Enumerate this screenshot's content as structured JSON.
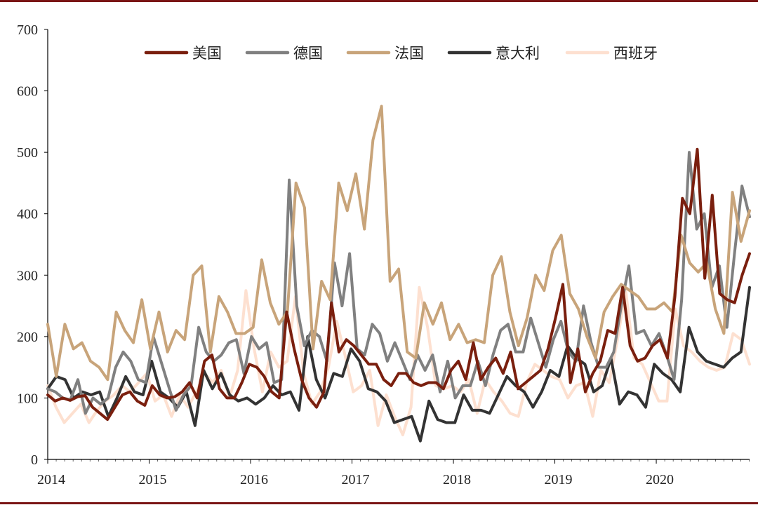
{
  "chart_data": {
    "type": "line",
    "title": "",
    "xlabel": "",
    "ylabel": "",
    "ylim": [
      0,
      700
    ],
    "y_ticks": [
      "0",
      "100",
      "200",
      "300",
      "400",
      "500",
      "600",
      "700"
    ],
    "x_ticks": [
      "2014",
      "2015",
      "2016",
      "2017",
      "2018",
      "2019",
      "2020"
    ],
    "x_start": 2014.0,
    "x_end": 2020.92,
    "grid": false,
    "legend_position": "top",
    "series": [
      {
        "name": "美国",
        "color": "#7a1f0e",
        "values": [
          105,
          95,
          100,
          96,
          102,
          104,
          85,
          75,
          65,
          85,
          105,
          110,
          95,
          88,
          120,
          105,
          100,
          102,
          110,
          125,
          100,
          160,
          170,
          115,
          100,
          100,
          125,
          155,
          150,
          135,
          110,
          100,
          240,
          180,
          130,
          100,
          85,
          110,
          255,
          175,
          195,
          185,
          170,
          155,
          155,
          130,
          120,
          140,
          140,
          125,
          120,
          125,
          125,
          115,
          145,
          160,
          130,
          190,
          130,
          150,
          165,
          140,
          175,
          115,
          125,
          135,
          145,
          180,
          230,
          285,
          125,
          180,
          110,
          140,
          160,
          210,
          205,
          280,
          185,
          160,
          165,
          185,
          195,
          165,
          265,
          425,
          400,
          505,
          295,
          430,
          270,
          260,
          255,
          300,
          335
        ]
      },
      {
        "name": "德国",
        "color": "#808080",
        "values": [
          115,
          110,
          100,
          97,
          130,
          75,
          100,
          90,
          100,
          150,
          175,
          160,
          130,
          125,
          200,
          160,
          120,
          80,
          105,
          120,
          215,
          175,
          160,
          170,
          190,
          195,
          140,
          200,
          180,
          190,
          125,
          130,
          455,
          250,
          185,
          210,
          200,
          160,
          320,
          250,
          335,
          180,
          170,
          220,
          205,
          160,
          190,
          160,
          130,
          170,
          145,
          170,
          110,
          160,
          100,
          120,
          120,
          160,
          120,
          170,
          210,
          220,
          175,
          175,
          230,
          190,
          150,
          195,
          225,
          175,
          160,
          250,
          190,
          150,
          150,
          175,
          250,
          315,
          205,
          210,
          185,
          205,
          170,
          130,
          260,
          500,
          375,
          400,
          280,
          315,
          215,
          335,
          445,
          395
        ]
      },
      {
        "name": "法国",
        "color": "#c8a47a",
        "values": [
          220,
          135,
          220,
          180,
          190,
          160,
          150,
          130,
          240,
          210,
          190,
          260,
          180,
          240,
          175,
          210,
          195,
          300,
          315,
          175,
          265,
          240,
          205,
          205,
          215,
          325,
          255,
          220,
          240,
          450,
          410,
          180,
          290,
          260,
          450,
          405,
          465,
          375,
          520,
          575,
          290,
          310,
          175,
          165,
          255,
          220,
          255,
          195,
          220,
          190,
          195,
          190,
          300,
          330,
          240,
          185,
          230,
          300,
          275,
          340,
          365,
          270,
          245,
          200,
          165,
          240,
          265,
          285,
          275,
          265,
          245,
          245,
          255,
          240,
          365,
          320,
          305,
          320,
          245,
          205,
          435,
          355,
          405
        ]
      },
      {
        "name": "意大利",
        "color": "#333333",
        "values": [
          115,
          135,
          130,
          100,
          110,
          105,
          110,
          70,
          100,
          135,
          110,
          105,
          160,
          110,
          100,
          85,
          110,
          55,
          145,
          115,
          140,
          105,
          95,
          100,
          90,
          100,
          120,
          105,
          110,
          80,
          200,
          130,
          100,
          140,
          135,
          180,
          160,
          115,
          110,
          95,
          60,
          65,
          70,
          30,
          95,
          65,
          60,
          60,
          105,
          80,
          80,
          75,
          105,
          135,
          120,
          110,
          85,
          110,
          145,
          135,
          185,
          165,
          155,
          110,
          120,
          165,
          90,
          110,
          105,
          85,
          155,
          140,
          130,
          110,
          215,
          175,
          160,
          155,
          150,
          165,
          175,
          280
        ]
      },
      {
        "name": "西班牙",
        "color": "#fde0d0",
        "values": [
          120,
          85,
          60,
          75,
          90,
          60,
          80,
          95,
          105,
          120,
          110,
          125,
          140,
          95,
          105,
          70,
          105,
          85,
          110,
          140,
          125,
          145,
          100,
          145,
          275,
          180,
          110,
          175,
          150,
          160,
          265,
          140,
          90,
          110,
          150,
          225,
          170,
          110,
          120,
          145,
          55,
          105,
          70,
          40,
          85,
          280,
          215,
          120,
          115,
          120,
          110,
          130,
          75,
          130,
          110,
          95,
          75,
          70,
          125,
          155,
          145,
          135,
          130,
          100,
          120,
          125,
          70,
          145,
          125,
          195,
          275,
          165,
          155,
          125,
          95,
          95,
          245,
          185,
          175,
          160,
          150,
          145,
          150,
          205,
          195,
          155
        ]
      }
    ]
  }
}
